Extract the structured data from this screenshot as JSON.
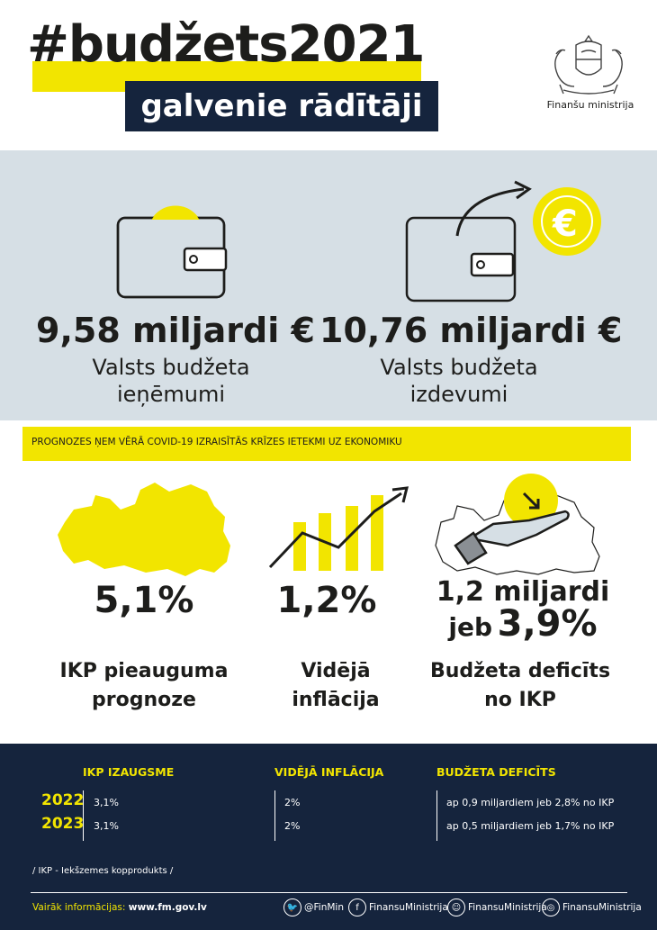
{
  "header": {
    "hashtag": "#budžets2021",
    "subtitle": "galvenie rādītāji",
    "ministry": "Finanšu ministrija"
  },
  "budget": {
    "revenue_amount": "9,58 miljardi €",
    "revenue_label_line1": "Valsts budžeta",
    "revenue_label_line2": "ieņēmumi",
    "expenditure_amount": "10,76 miljardi €",
    "expenditure_label_line1": "Valsts budžeta",
    "expenditure_label_line2": "izdevumi",
    "euro_symbol": "€"
  },
  "banner": {
    "text": "PROGNOZES ŅEM VĒRĀ COVID-19 IZRAISĪTĀS KRĪZES IETEKMI UZ EKONOMIKU"
  },
  "indicators": [
    {
      "value": "5,1%",
      "label_line1": "IKP pieauguma",
      "label_line2": "prognoze",
      "icon": "latvia-map-icon"
    },
    {
      "value": "1,2%",
      "label_line1": "Vidējā",
      "label_line2": "inflācija",
      "icon": "growth-chart-icon"
    },
    {
      "value_line1": "1,2 miljardi",
      "value_line2_prefix": "jeb",
      "value_line2": "3,9%",
      "label_line1": "Budžeta deficīts",
      "label_line2": "no IKP",
      "icon": "hand-coin-icon"
    }
  ],
  "forecast": {
    "columns": [
      "IKP IZAUGSME",
      "VIDĒJĀ INFLĀCIJA",
      "BUDŽETA DEFICĪTS"
    ],
    "rows": [
      {
        "year": "2022",
        "gdp": "3,1%",
        "inflation": "2%",
        "deficit": "ap 0,9 miljardiem jeb 2,8% no IKP"
      },
      {
        "year": "2023",
        "gdp": "3,1%",
        "inflation": "2%",
        "deficit": "ap 0,5 miljardiem jeb 1,7% no IKP"
      }
    ]
  },
  "footer": {
    "note": "/ IKP - Iekšzemes kopprodukts /",
    "more_info_label": "Vairāk informācijas:",
    "more_info_url": "www.fm.gov.lv",
    "social": [
      {
        "icon": "twitter-icon",
        "glyph": "🐦",
        "handle": "@FinMin"
      },
      {
        "icon": "facebook-icon",
        "glyph": "f",
        "handle": "FinansuMinistrija"
      },
      {
        "icon": "draugiem-icon",
        "glyph": "☺",
        "handle": "FinansuMinistrija"
      },
      {
        "icon": "instagram-icon",
        "glyph": "◎",
        "handle": "FinansuMinistrija"
      }
    ]
  },
  "colors": {
    "accent": "#f2e500",
    "navy": "#15243d",
    "grey_bg": "#d6dfe5",
    "text": "#1d1d1b"
  }
}
